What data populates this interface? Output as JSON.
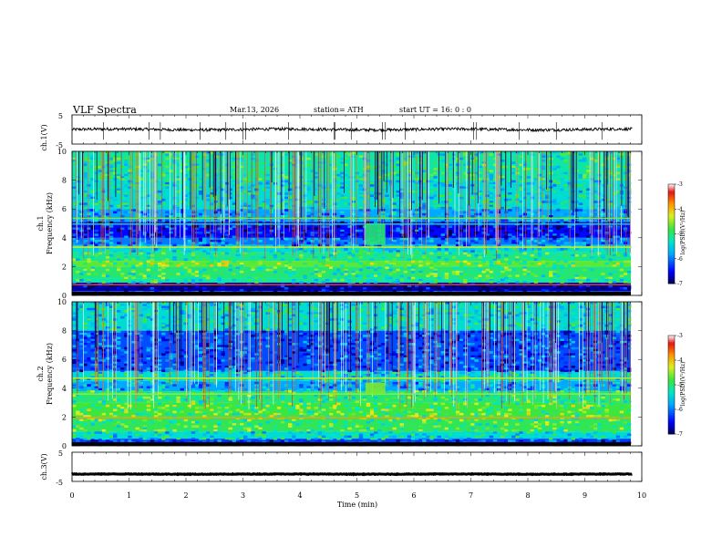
{
  "header": {
    "title": "VLF  Spectra",
    "date": "Mar.13, 2026",
    "station": "station= ATH",
    "start": "start  UT  =    16: 0  : 0"
  },
  "chart_data": [
    {
      "type": "line",
      "id": "ch1-waveform",
      "ylabel": "ch.1(V)",
      "ylim": [
        -5,
        5
      ],
      "yticks": [
        "5",
        "-5"
      ],
      "xlim": [
        0,
        9.83
      ],
      "color": "#000000",
      "baseline": 0.0,
      "noise_amplitude": 0.5,
      "spikes": [
        0.55,
        1.35,
        1.55,
        2.25,
        2.7,
        3.0,
        3.05,
        3.8,
        4.6,
        4.62,
        4.9,
        5.45,
        5.5,
        5.85,
        7.05,
        7.1,
        7.85,
        8.5,
        9.3
      ]
    },
    {
      "type": "heatmap",
      "id": "ch1-spectrogram",
      "ylabel": "Frequency (kHz)",
      "channel_label": "ch.1",
      "ylim": [
        0,
        10
      ],
      "yticks": [
        "0",
        "2",
        "4",
        "6",
        "8",
        "10"
      ],
      "xlim": [
        0,
        9.83
      ],
      "bands": [
        {
          "f0": 0.0,
          "f1": 0.1,
          "level": -7.0
        },
        {
          "f0": 0.1,
          "f1": 0.3,
          "level": -6.2
        },
        {
          "f0": 0.3,
          "f1": 0.9,
          "level": -6.8
        },
        {
          "f0": 0.9,
          "f1": 1.2,
          "level": -5.2
        },
        {
          "f0": 1.2,
          "f1": 2.0,
          "level": -5.0
        },
        {
          "f0": 2.0,
          "f1": 2.4,
          "level": -4.7
        },
        {
          "f0": 2.4,
          "f1": 3.0,
          "level": -5.1
        },
        {
          "f0": 3.0,
          "f1": 3.5,
          "level": -5.4
        },
        {
          "f0": 3.5,
          "f1": 4.0,
          "level": -6.0
        },
        {
          "f0": 4.0,
          "f1": 5.1,
          "level": -6.5
        },
        {
          "f0": 5.1,
          "f1": 6.0,
          "level": -5.8
        },
        {
          "f0": 6.0,
          "f1": 8.0,
          "level": -5.4
        },
        {
          "f0": 8.0,
          "f1": 10.0,
          "level": -5.2
        }
      ],
      "lines": [
        {
          "f": 0.75,
          "level": -3.5
        },
        {
          "f": 3.35,
          "level": -4.3
        },
        {
          "f": 5.35,
          "level": -4.6
        },
        {
          "f": 4.95,
          "level": -5.2
        }
      ],
      "features": [
        {
          "t0": 5.15,
          "t1": 5.5,
          "f0": 3.5,
          "f1": 5.0,
          "level": -5.0
        }
      ],
      "colorbar": {
        "min": -7,
        "max": -3,
        "ticks": [
          "-3",
          "-4",
          "-5",
          "-6",
          "-7"
        ],
        "label": "log(PSD)(V²/Hz)"
      }
    },
    {
      "type": "heatmap",
      "id": "ch2-spectrogram",
      "ylabel": "Frequency (kHz)",
      "channel_label": "ch.2",
      "ylim": [
        0,
        10
      ],
      "yticks": [
        "0",
        "2",
        "4",
        "6",
        "8",
        "10"
      ],
      "xlim": [
        0,
        9.83
      ],
      "bands": [
        {
          "f0": 0.0,
          "f1": 0.1,
          "level": -7.0
        },
        {
          "f0": 0.1,
          "f1": 0.5,
          "level": -6.3
        },
        {
          "f0": 0.5,
          "f1": 1.0,
          "level": -5.4
        },
        {
          "f0": 1.0,
          "f1": 2.0,
          "level": -4.9
        },
        {
          "f0": 2.0,
          "f1": 3.0,
          "level": -4.8
        },
        {
          "f0": 3.0,
          "f1": 3.8,
          "level": -5.0
        },
        {
          "f0": 3.8,
          "f1": 4.5,
          "level": -5.8
        },
        {
          "f0": 4.5,
          "f1": 5.2,
          "level": -5.4
        },
        {
          "f0": 5.2,
          "f1": 8.0,
          "level": -6.2
        },
        {
          "f0": 8.0,
          "f1": 10.0,
          "level": -5.4
        }
      ],
      "lines": [
        {
          "f": 1.95,
          "level": -3.8
        },
        {
          "f": 4.7,
          "level": -4.4
        },
        {
          "f": 3.6,
          "level": -4.5
        }
      ],
      "features": [
        {
          "t0": 5.15,
          "t1": 5.5,
          "f0": 3.6,
          "f1": 4.4,
          "level": -4.6
        }
      ],
      "colorbar": {
        "min": -7,
        "max": -3,
        "ticks": [
          "-3",
          "-4",
          "-5",
          "-6",
          "-7"
        ],
        "label": "log(PSD)(V²/Hz)"
      }
    },
    {
      "type": "line",
      "id": "ch3-waveform",
      "ylabel": "ch.3(V)",
      "ylim": [
        -5,
        5
      ],
      "yticks": [
        "5",
        "-5"
      ],
      "xlim": [
        0,
        9.83
      ],
      "color": "#000000",
      "baseline": -2.5,
      "noise_amplitude": 0.1,
      "spikes": []
    }
  ],
  "xaxis": {
    "label": "Time  (min)",
    "range": [
      0,
      10
    ],
    "ticks": [
      "0",
      "1",
      "2",
      "3",
      "4",
      "5",
      "6",
      "7",
      "8",
      "9",
      "10"
    ]
  }
}
